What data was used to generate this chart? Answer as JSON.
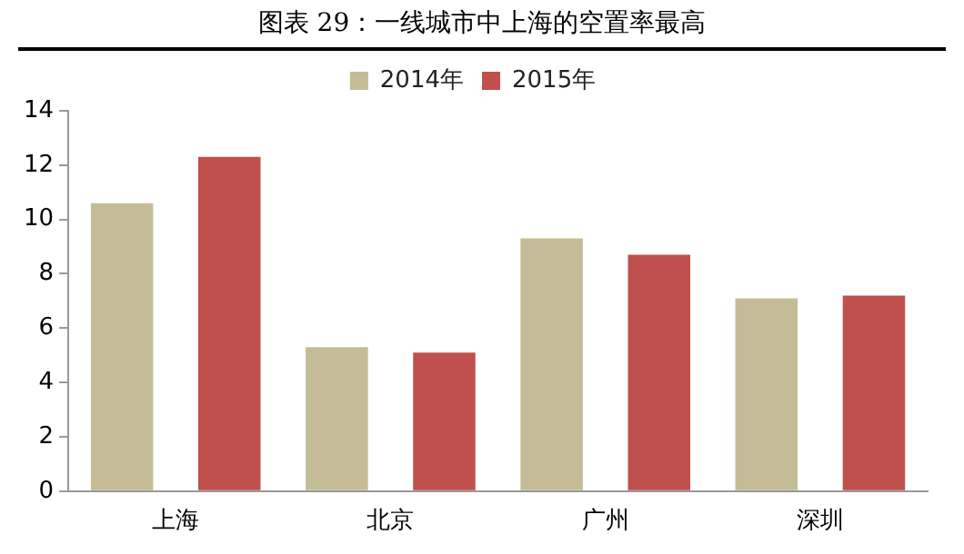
{
  "chart_data": {
    "type": "bar",
    "title": "图表 29：一线城市中上海的空置率最高",
    "categories": [
      "上海",
      "北京",
      "广州",
      "深圳"
    ],
    "series": [
      {
        "name": "2014年",
        "color": "#c4bc96",
        "values": [
          10.6,
          5.3,
          9.3,
          7.1
        ]
      },
      {
        "name": "2015年",
        "color": "#c0504d",
        "values": [
          12.3,
          5.1,
          8.7,
          7.2
        ]
      }
    ],
    "ylim": [
      0,
      14
    ],
    "yticks": [
      0,
      2,
      4,
      6,
      8,
      10,
      12,
      14
    ],
    "grid": false,
    "legend": "top"
  }
}
